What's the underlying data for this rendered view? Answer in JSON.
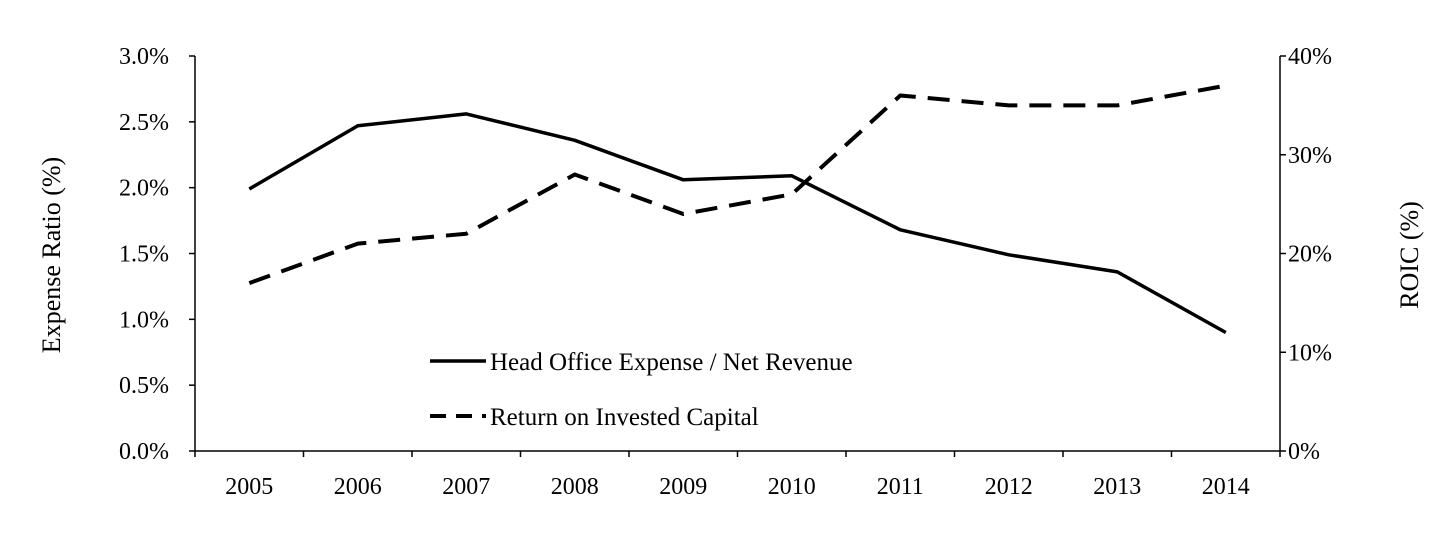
{
  "chart_data": {
    "type": "line",
    "categories": [
      "2005",
      "2006",
      "2007",
      "2008",
      "2009",
      "2010",
      "2011",
      "2012",
      "2013",
      "2014"
    ],
    "series": [
      {
        "name": "Head Office Expense / Net Revenue",
        "axis": "left",
        "style": "solid",
        "values": [
          1.99,
          2.47,
          2.56,
          2.36,
          2.06,
          2.09,
          1.68,
          1.49,
          1.36,
          0.9
        ]
      },
      {
        "name": "Return on Invested Capital",
        "axis": "right",
        "style": "dashed",
        "values": [
          17,
          21,
          22,
          28,
          24,
          26,
          36,
          35,
          35,
          37
        ]
      }
    ],
    "ylabel_left": "Expense Ratio (%)",
    "ylabel_right": "ROIC (%)",
    "ylim_left": [
      0,
      3.0
    ],
    "ylim_right": [
      0,
      40
    ],
    "yticks_left": [
      "0.0%",
      "0.5%",
      "1.0%",
      "1.5%",
      "2.0%",
      "2.5%",
      "3.0%"
    ],
    "yticks_right": [
      "0%",
      "10%",
      "20%",
      "30%",
      "40%"
    ],
    "grid": false,
    "legend_position": "bottom-center"
  }
}
